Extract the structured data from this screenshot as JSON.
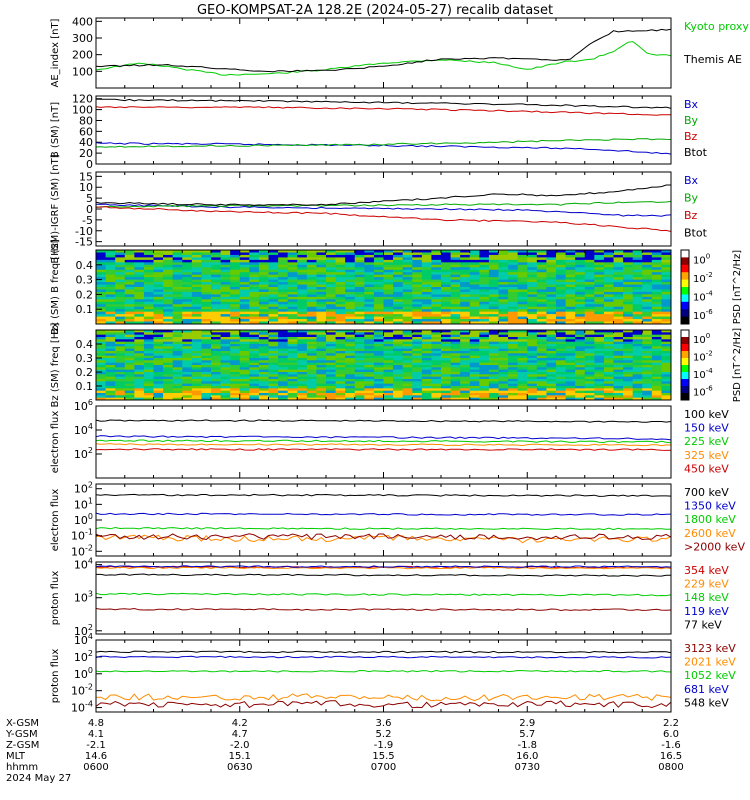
{
  "title": "GEO-KOMPSAT-2A 128.2E (2024-05-27) recalib dataset",
  "chart_data": [
    {
      "type": "line",
      "ylabel": "AE_index [nT]",
      "ylim": [
        0,
        420
      ],
      "yticks": [
        "100",
        "200",
        "300",
        "400"
      ],
      "series": [
        {
          "name": "Kyoto proxy AE",
          "color": "#00cc00",
          "values": [
            [
              0,
              110
            ],
            [
              0.08,
              150
            ],
            [
              0.15,
              115
            ],
            [
              0.22,
              80
            ],
            [
              0.3,
              85
            ],
            [
              0.4,
              110
            ],
            [
              0.5,
              150
            ],
            [
              0.6,
              170
            ],
            [
              0.7,
              150
            ],
            [
              0.75,
              110
            ],
            [
              0.82,
              160
            ],
            [
              0.86,
              170
            ],
            [
              0.9,
              220
            ],
            [
              0.93,
              290
            ],
            [
              0.96,
              200
            ],
            [
              1,
              195
            ]
          ]
        },
        {
          "name": "Themis AE",
          "color": "#000000",
          "values": [
            [
              0,
              130
            ],
            [
              0.12,
              140
            ],
            [
              0.2,
              120
            ],
            [
              0.3,
              100
            ],
            [
              0.4,
              105
            ],
            [
              0.5,
              130
            ],
            [
              0.6,
              175
            ],
            [
              0.7,
              180
            ],
            [
              0.78,
              170
            ],
            [
              0.82,
              165
            ],
            [
              0.86,
              270
            ],
            [
              0.9,
              340
            ],
            [
              0.95,
              345
            ],
            [
              1,
              350
            ]
          ]
        }
      ]
    },
    {
      "type": "line",
      "ylabel": "B (SM) [nT]",
      "ylim": [
        0,
        125
      ],
      "yticks": [
        "0",
        "20",
        "40",
        "60",
        "80",
        "100",
        "120"
      ],
      "series": [
        {
          "name": "Bx",
          "color": "#0000cc",
          "values": [
            [
              0,
              38
            ],
            [
              0.3,
              36
            ],
            [
              0.5,
              34
            ],
            [
              0.7,
              31
            ],
            [
              0.85,
              28
            ],
            [
              0.92,
              24
            ],
            [
              1,
              18
            ]
          ]
        },
        {
          "name": "By",
          "color": "#00aa00",
          "values": [
            [
              0,
              32
            ],
            [
              0.3,
              34
            ],
            [
              0.5,
              36
            ],
            [
              0.7,
              40
            ],
            [
              0.85,
              44
            ],
            [
              1,
              46
            ]
          ]
        },
        {
          "name": "Bz",
          "color": "#cc0000",
          "values": [
            [
              0,
              105
            ],
            [
              0.3,
              104
            ],
            [
              0.5,
              102
            ],
            [
              0.7,
              98
            ],
            [
              0.85,
              94
            ],
            [
              1,
              90
            ]
          ]
        },
        {
          "name": "Btot",
          "color": "#000000",
          "values": [
            [
              0,
              118
            ],
            [
              0.3,
              116
            ],
            [
              0.5,
              113
            ],
            [
              0.7,
              110
            ],
            [
              0.85,
              107
            ],
            [
              1,
              103
            ]
          ]
        }
      ]
    },
    {
      "type": "line",
      "ylabel": "B (SM)-IGRF (SM) [nT]",
      "ylim": [
        -17,
        17
      ],
      "yticks": [
        "-15",
        "-10",
        "-5",
        "0",
        "5",
        "10",
        "15"
      ],
      "series": [
        {
          "name": "Bx",
          "color": "#0000cc",
          "values": [
            [
              0,
              2
            ],
            [
              0.2,
              1
            ],
            [
              0.4,
              0.5
            ],
            [
              0.6,
              0
            ],
            [
              0.75,
              -0.5
            ],
            [
              0.85,
              -2
            ],
            [
              0.92,
              -3
            ],
            [
              1,
              -3
            ]
          ]
        },
        {
          "name": "By",
          "color": "#00aa00",
          "values": [
            [
              0,
              1
            ],
            [
              0.2,
              1.5
            ],
            [
              0.4,
              1.5
            ],
            [
              0.6,
              2
            ],
            [
              0.8,
              2
            ],
            [
              0.9,
              3
            ],
            [
              1,
              3.5
            ]
          ]
        },
        {
          "name": "Bz",
          "color": "#cc0000",
          "values": [
            [
              0,
              1
            ],
            [
              0.2,
              -1
            ],
            [
              0.4,
              -2
            ],
            [
              0.6,
              -5
            ],
            [
              0.8,
              -6
            ],
            [
              0.9,
              -8
            ],
            [
              1,
              -10
            ]
          ]
        },
        {
          "name": "Btot",
          "color": "#000000",
          "values": [
            [
              0,
              3
            ],
            [
              0.2,
              2
            ],
            [
              0.4,
              2
            ],
            [
              0.6,
              5
            ],
            [
              0.7,
              7
            ],
            [
              0.8,
              6
            ],
            [
              0.9,
              8
            ],
            [
              1,
              11
            ]
          ]
        }
      ]
    },
    {
      "type": "heatmap",
      "ylabel": "Bx (SM) B freq [Hz]",
      "yticks": [
        "0.1",
        "0.2",
        "0.3",
        "0.4"
      ],
      "colorbar": {
        "label": "PSD [nT^2/Hz]",
        "ticks": [
          "10^0",
          "10^-2",
          "10^-4",
          "10^-6"
        ]
      }
    },
    {
      "type": "heatmap",
      "ylabel": "Bz (SM) freq [Hz]",
      "yticks": [
        "0.1",
        "0.2",
        "0.3",
        "0.4"
      ],
      "colorbar": {
        "label": "PSD [nT^2/Hz]",
        "ticks": [
          "10^0",
          "10^-2",
          "10^-4",
          "10^-6"
        ]
      }
    },
    {
      "type": "line",
      "ylabel": "electron flux",
      "yscale": "log",
      "ylim": [
        1,
        1000000
      ],
      "yticks": [
        "10^2",
        "10^4",
        "10^6"
      ],
      "series": [
        {
          "name": "100 keV",
          "color": "#000000",
          "values": [
            [
              0,
              60000
            ],
            [
              0.3,
              60000
            ],
            [
              0.6,
              55000
            ],
            [
              0.9,
              50000
            ],
            [
              1,
              45000
            ]
          ]
        },
        {
          "name": "150 keV",
          "color": "#0000cc",
          "values": [
            [
              0,
              3000
            ],
            [
              0.4,
              2500
            ],
            [
              0.7,
              2200
            ],
            [
              0.9,
              2000
            ],
            [
              1,
              1500
            ]
          ]
        },
        {
          "name": "225 keV",
          "color": "#00cc00",
          "values": [
            [
              0,
              1300
            ],
            [
              0.5,
              1200
            ],
            [
              1,
              1000
            ]
          ]
        },
        {
          "name": "325 keV",
          "color": "#ff8c00",
          "values": [
            [
              0,
              650
            ],
            [
              0.5,
              600
            ],
            [
              1,
              550
            ]
          ]
        },
        {
          "name": "450 keV",
          "color": "#cc0000",
          "values": [
            [
              0,
              250
            ],
            [
              0.5,
              240
            ],
            [
              1,
              230
            ]
          ]
        }
      ]
    },
    {
      "type": "line",
      "ylabel": "electron flux",
      "yscale": "log",
      "ylim": [
        0.005,
        200
      ],
      "yticks": [
        "10^-2",
        "10^-1",
        "10^0",
        "10^1",
        "10^2"
      ],
      "series": [
        {
          "name": "700 keV",
          "color": "#000000",
          "values": [
            [
              0,
              40
            ],
            [
              0.5,
              38
            ],
            [
              1,
              35
            ]
          ]
        },
        {
          "name": "1350 keV",
          "color": "#0000cc",
          "values": [
            [
              0,
              2.5
            ],
            [
              0.5,
              2.3
            ],
            [
              1,
              2.2
            ]
          ]
        },
        {
          "name": "1800 keV",
          "color": "#00cc00",
          "values": [
            [
              0,
              0.3
            ],
            [
              0.5,
              0.28
            ],
            [
              1,
              0.27
            ]
          ]
        },
        {
          "name": "2600 keV",
          "color": "#ff8c00",
          "values": [
            [
              0,
              0.08
            ],
            [
              0.25,
              0.06
            ],
            [
              0.5,
              0.07
            ],
            [
              0.75,
              0.05
            ],
            [
              1,
              0.06
            ]
          ]
        },
        {
          "name": ">2000 keV",
          "color": "#8b0000",
          "values": [
            [
              0,
              0.09
            ],
            [
              0.5,
              0.085
            ],
            [
              1,
              0.08
            ]
          ]
        }
      ]
    },
    {
      "type": "line",
      "ylabel": "proton flux",
      "yscale": "log",
      "ylim": [
        80,
        12000
      ],
      "yticks": [
        "10^2",
        "10^3",
        "10^4"
      ],
      "series": [
        {
          "name": "354 keV",
          "color": "#cc0000",
          "values": [
            [
              0,
              8500
            ],
            [
              0.5,
              8400
            ],
            [
              1,
              8300
            ]
          ]
        },
        {
          "name": "229 keV",
          "color": "#ff8c00",
          "values": [
            [
              0,
              8000
            ],
            [
              0.5,
              7900
            ],
            [
              1,
              7800
            ]
          ]
        },
        {
          "name": "148 keV",
          "color": "#00cc00",
          "values": [
            [
              0,
              1300
            ],
            [
              0.5,
              1250
            ],
            [
              1,
              1200
            ]
          ]
        },
        {
          "name": "119 keV",
          "color": "#0000cc",
          "values": [
            [
              0,
              8800
            ],
            [
              0.5,
              8700
            ],
            [
              1,
              8600
            ]
          ]
        },
        {
          "name": "77 keV",
          "color": "#000000",
          "values": [
            [
              0,
              5000
            ],
            [
              0.5,
              4800
            ],
            [
              1,
              4600
            ]
          ]
        },
        {
          "name": "",
          "color": "#8b0000",
          "values": [
            [
              0,
              450
            ],
            [
              0.5,
              440
            ],
            [
              1,
              430
            ]
          ]
        }
      ]
    },
    {
      "type": "line",
      "ylabel": "proton flux",
      "yscale": "log",
      "ylim": [
        3e-05,
        10000
      ],
      "yticks": [
        "10^-4",
        "10^-2",
        "10^0",
        "10^2",
        "10^4"
      ],
      "series": [
        {
          "name": "3123 keV",
          "color": "#8b0000",
          "values": [
            [
              0,
              0.0003
            ],
            [
              0.2,
              0.0002
            ],
            [
              0.4,
              0.0003
            ],
            [
              0.6,
              0.0002
            ],
            [
              0.8,
              0.0003
            ],
            [
              1,
              0.0002
            ]
          ]
        },
        {
          "name": "2021 keV",
          "color": "#ff8c00",
          "values": [
            [
              0,
              0.002
            ],
            [
              0.2,
              0.0015
            ],
            [
              0.4,
              0.002
            ],
            [
              0.6,
              0.0012
            ],
            [
              0.8,
              0.002
            ],
            [
              1,
              0.0015
            ]
          ]
        },
        {
          "name": "1052 keV",
          "color": "#00cc00",
          "values": [
            [
              0,
              2
            ],
            [
              0.5,
              2
            ],
            [
              1,
              2
            ]
          ]
        },
        {
          "name": "681 keV",
          "color": "#0000cc",
          "values": [
            [
              0,
              100
            ],
            [
              0.5,
              95
            ],
            [
              1,
              90
            ]
          ]
        },
        {
          "name": "548 keV",
          "color": "#000000",
          "values": [
            [
              0,
              400
            ],
            [
              0.5,
              380
            ],
            [
              1,
              360
            ]
          ]
        }
      ]
    }
  ],
  "xaxis": {
    "row_labels": [
      "X-GSM",
      "Y-GSM",
      "Z-GSM",
      "MLT",
      "hhmm",
      "2024 May 27"
    ],
    "columns": [
      [
        "4.8",
        "4.1",
        "-2.1",
        "14.6",
        "0600"
      ],
      [
        "4.2",
        "4.7",
        "-2.0",
        "15.1",
        "0630"
      ],
      [
        "3.6",
        "5.2",
        "-1.9",
        "15.5",
        "0700"
      ],
      [
        "2.9",
        "5.7",
        "-1.8",
        "16.0",
        "0730"
      ],
      [
        "2.2",
        "6.0",
        "-1.6",
        "16.5",
        "0800"
      ]
    ]
  }
}
